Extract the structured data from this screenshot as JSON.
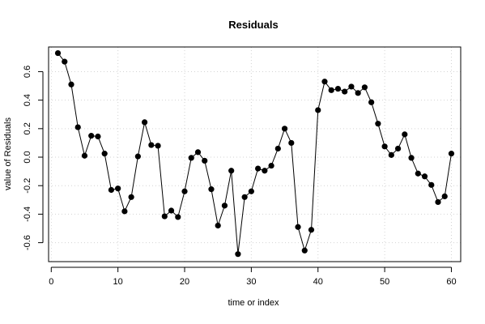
{
  "chart_data": {
    "type": "line",
    "title": "Residuals",
    "xlabel": "time or index",
    "ylabel": "value of Residuals",
    "xlim": [
      -0.4,
      61.4
    ],
    "ylim": [
      -0.733,
      0.773
    ],
    "xticks": [
      0,
      10,
      20,
      30,
      40,
      50,
      60
    ],
    "yticks": [
      -0.6,
      -0.4,
      -0.2,
      0.0,
      0.2,
      0.4,
      0.6
    ],
    "grid": true,
    "markers": "filled-circle",
    "line_color": "#000000",
    "grid_color": "#d3d3d3",
    "series": [
      {
        "x": [
          1,
          2,
          3,
          4,
          5,
          6,
          7,
          8,
          9,
          10,
          11,
          12,
          13,
          14,
          15,
          16,
          17,
          18,
          19,
          20,
          21,
          22,
          23,
          24,
          25,
          26,
          27,
          28,
          29,
          30,
          31,
          32,
          33,
          34,
          35,
          36,
          37,
          38,
          39,
          40,
          41,
          42,
          43,
          44,
          45,
          46,
          47,
          48,
          49,
          50,
          51,
          52,
          53,
          54,
          55,
          56,
          57,
          58,
          59,
          60
        ],
        "values": [
          0.73,
          0.67,
          0.51,
          0.21,
          0.01,
          0.15,
          0.145,
          0.025,
          -0.23,
          -0.22,
          -0.38,
          -0.28,
          0.005,
          0.245,
          0.085,
          0.08,
          -0.415,
          -0.375,
          -0.42,
          -0.24,
          -0.005,
          0.035,
          -0.025,
          -0.225,
          -0.48,
          -0.34,
          -0.095,
          -0.68,
          -0.28,
          -0.24,
          -0.08,
          -0.095,
          -0.06,
          0.06,
          0.2,
          0.1,
          -0.49,
          -0.655,
          -0.51,
          0.33,
          0.53,
          0.47,
          0.48,
          0.46,
          0.495,
          0.45,
          0.49,
          0.385,
          0.235,
          0.075,
          0.015,
          0.06,
          0.16,
          -0.005,
          -0.115,
          -0.135,
          -0.195,
          -0.315,
          -0.275,
          0.025
        ]
      }
    ]
  }
}
